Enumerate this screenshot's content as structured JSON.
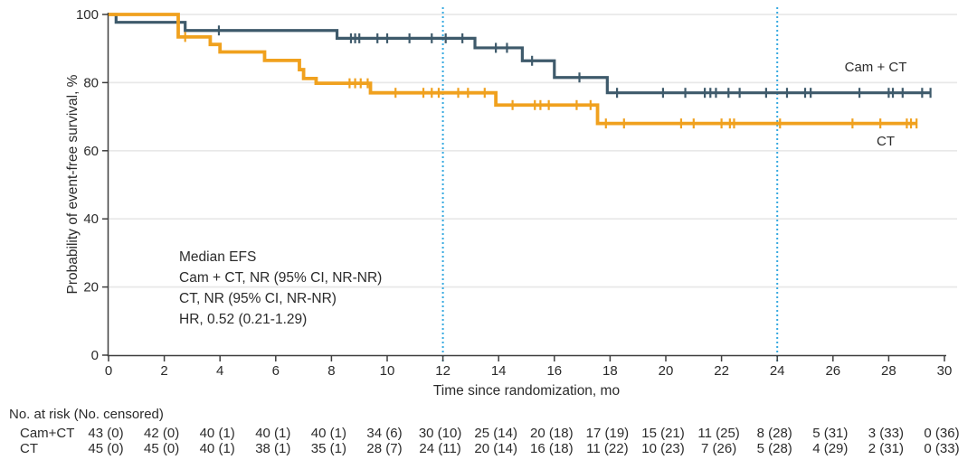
{
  "chart_data": {
    "type": "line",
    "subtype": "kaplan-meier-step",
    "title": "",
    "xlabel": "Time since randomization, mo",
    "ylabel": "Probability of event-free survival, %",
    "xlim": [
      0,
      30
    ],
    "ylim": [
      0,
      100
    ],
    "xticks": [
      0,
      2,
      4,
      6,
      8,
      10,
      12,
      14,
      16,
      18,
      20,
      22,
      24,
      26,
      28,
      30
    ],
    "yticks": [
      0,
      20,
      40,
      60,
      80,
      100
    ],
    "grid": "horizontal",
    "reference_months": [
      12,
      24
    ],
    "colors": {
      "cam_ct": "#3e5a6b",
      "ct": "#f0a11e",
      "reference": "#36a9e0",
      "grid": "#e8e8e8",
      "axis": "#3f3f3f",
      "text": "#2b2b2b"
    },
    "annotation": [
      "Median EFS",
      "Cam + CT, NR (95% CI, NR-NR)",
      "CT, NR (95% CI, NR-NR)",
      "HR, 0.52 (0.21-1.29)"
    ],
    "series": [
      {
        "name": "Cam+CT",
        "label": "Cam + CT",
        "color": "#3e5a6b",
        "steps": [
          [
            0,
            100
          ],
          [
            0.27,
            97.7
          ],
          [
            2.75,
            95.3
          ],
          [
            8.2,
            93.0
          ],
          [
            13.15,
            90.2
          ],
          [
            14.85,
            86.4
          ],
          [
            16.0,
            81.5
          ],
          [
            17.9,
            77.0
          ],
          [
            29.5,
            77.0
          ]
        ],
        "censor_marks": [
          [
            3.96,
            95.3
          ],
          [
            8.7,
            93.0
          ],
          [
            8.85,
            93.0
          ],
          [
            9.0,
            93.0
          ],
          [
            9.65,
            93.0
          ],
          [
            10.0,
            93.0
          ],
          [
            10.8,
            93.0
          ],
          [
            11.6,
            93.0
          ],
          [
            12.1,
            93.0
          ],
          [
            12.7,
            93.0
          ],
          [
            13.9,
            90.2
          ],
          [
            14.3,
            90.2
          ],
          [
            15.2,
            86.4
          ],
          [
            16.9,
            81.5
          ],
          [
            18.25,
            77.0
          ],
          [
            19.9,
            77.0
          ],
          [
            20.7,
            77.0
          ],
          [
            21.4,
            77.0
          ],
          [
            21.6,
            77.0
          ],
          [
            21.8,
            77.0
          ],
          [
            22.25,
            77.0
          ],
          [
            22.65,
            77.0
          ],
          [
            23.6,
            77.0
          ],
          [
            24.35,
            77.0
          ],
          [
            25.0,
            77.0
          ],
          [
            25.2,
            77.0
          ],
          [
            26.95,
            77.0
          ],
          [
            28.0,
            77.0
          ],
          [
            28.15,
            77.0
          ],
          [
            28.5,
            77.0
          ],
          [
            29.2,
            77.0
          ],
          [
            29.5,
            77.0
          ]
        ]
      },
      {
        "name": "CT",
        "label": "CT",
        "color": "#f0a11e",
        "steps": [
          [
            0,
            100
          ],
          [
            2.5,
            93.4
          ],
          [
            3.65,
            91.2
          ],
          [
            4.0,
            89.0
          ],
          [
            5.6,
            86.5
          ],
          [
            6.85,
            83.8
          ],
          [
            7.0,
            81.2
          ],
          [
            7.45,
            79.8
          ],
          [
            9.4,
            77.0
          ],
          [
            13.9,
            73.4
          ],
          [
            17.55,
            68.0
          ],
          [
            29.0,
            68.0
          ]
        ],
        "censor_marks": [
          [
            2.75,
            93.4
          ],
          [
            8.65,
            79.8
          ],
          [
            8.85,
            79.8
          ],
          [
            9.05,
            79.8
          ],
          [
            9.3,
            79.8
          ],
          [
            10.3,
            77.0
          ],
          [
            11.3,
            77.0
          ],
          [
            11.6,
            77.0
          ],
          [
            11.85,
            77.0
          ],
          [
            12.55,
            77.0
          ],
          [
            12.9,
            77.0
          ],
          [
            13.5,
            77.0
          ],
          [
            14.5,
            73.4
          ],
          [
            15.3,
            73.4
          ],
          [
            15.5,
            73.4
          ],
          [
            15.8,
            73.4
          ],
          [
            16.8,
            73.4
          ],
          [
            17.3,
            73.4
          ],
          [
            17.85,
            68.0
          ],
          [
            18.5,
            68.0
          ],
          [
            20.55,
            68.0
          ],
          [
            21.0,
            68.0
          ],
          [
            22.0,
            68.0
          ],
          [
            22.3,
            68.0
          ],
          [
            22.45,
            68.0
          ],
          [
            24.1,
            68.0
          ],
          [
            26.7,
            68.0
          ],
          [
            27.7,
            68.0
          ],
          [
            28.65,
            68.0
          ],
          [
            28.8,
            68.0
          ],
          [
            29.0,
            68.0
          ]
        ]
      }
    ]
  },
  "risk_table": {
    "title": "No. at risk (No. censored)",
    "time_points": [
      0,
      2,
      4,
      6,
      8,
      10,
      12,
      14,
      16,
      18,
      20,
      22,
      24,
      26,
      28,
      30
    ],
    "rows": [
      {
        "label": "Cam+CT",
        "values": [
          "43 (0)",
          "42 (0)",
          "40 (1)",
          "40 (1)",
          "40 (1)",
          "34 (6)",
          "30 (10)",
          "25 (14)",
          "20 (18)",
          "17 (19)",
          "15 (21)",
          "11 (25)",
          "8 (28)",
          "5 (31)",
          "3 (33)",
          "0 (36)"
        ]
      },
      {
        "label": "CT",
        "values": [
          "45 (0)",
          "45 (0)",
          "40 (1)",
          "38 (1)",
          "35 (1)",
          "28 (7)",
          "24 (11)",
          "20 (14)",
          "16 (18)",
          "11 (22)",
          "10 (23)",
          "7 (26)",
          "5 (28)",
          "4 (29)",
          "2 (31)",
          "0 (33)"
        ]
      }
    ]
  }
}
